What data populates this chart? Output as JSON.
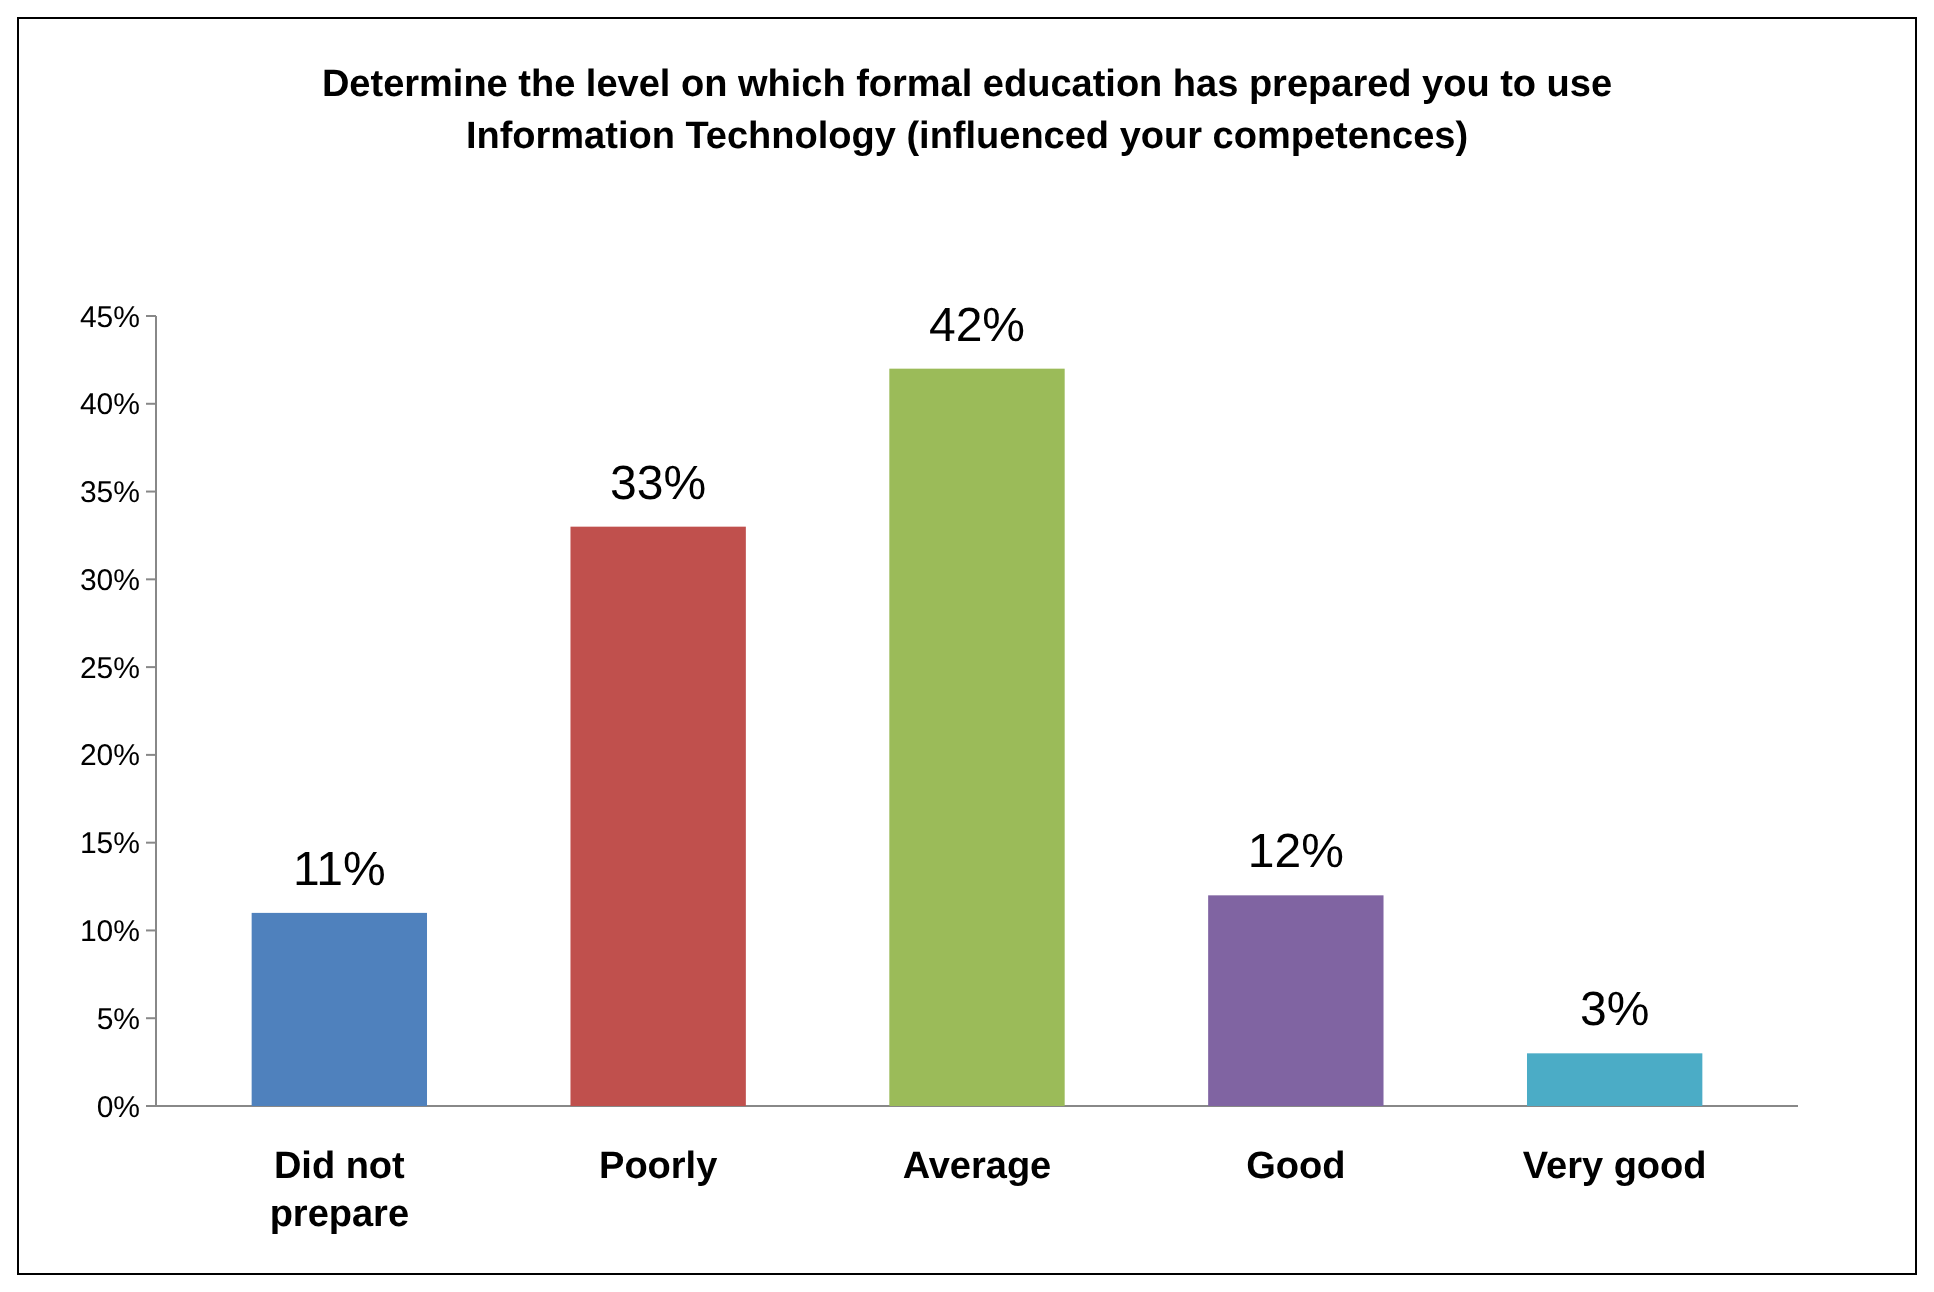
{
  "chart_data": {
    "type": "bar",
    "title": "Determine the level on which formal education has prepared you to use Information Technology (influenced your competences)",
    "categories": [
      "Did not prepare",
      "Poorly",
      "Average",
      "Good",
      "Very good"
    ],
    "values": [
      11,
      33,
      42,
      12,
      3
    ],
    "colors": [
      "#4f81bd",
      "#c0504d",
      "#9bbb59",
      "#8064a2",
      "#4bacc6"
    ],
    "value_labels": [
      "11%",
      "33%",
      "42%",
      "12%",
      "3%"
    ],
    "ylim": [
      0,
      45
    ],
    "yticks": [
      {
        "value": 0,
        "label": "0%"
      },
      {
        "value": 5,
        "label": "5%"
      },
      {
        "value": 10,
        "label": "10%"
      },
      {
        "value": 15,
        "label": "15%"
      },
      {
        "value": 20,
        "label": "20%"
      },
      {
        "value": 25,
        "label": "25%"
      },
      {
        "value": 30,
        "label": "30%"
      },
      {
        "value": 35,
        "label": "35%"
      },
      {
        "value": 40,
        "label": "40%"
      },
      {
        "value": 45,
        "label": "45%"
      }
    ],
    "grid": false
  }
}
